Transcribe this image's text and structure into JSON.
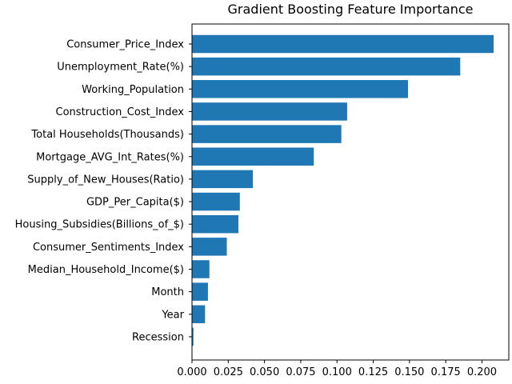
{
  "chart_data": {
    "type": "bar",
    "orientation": "horizontal",
    "title": "Gradient Boosting Feature Importance",
    "xlabel": "",
    "ylabel": "",
    "categories": [
      "Consumer_Price_Index",
      "Unemployment_Rate(%)",
      "Working_Population",
      "Construction_Cost_Index",
      "Total Households(Thousands)",
      "Mortgage_AVG_Int_Rates(%)",
      "Supply_of_New_Houses(Ratio)",
      "GDP_Per_Capita($)",
      "Housing_Subsidies(Billions_of_$)",
      "Consumer_Sentiments_Index",
      "Median_Household_Income($)",
      "Month",
      "Year",
      "Recession"
    ],
    "values": [
      0.208,
      0.185,
      0.149,
      0.107,
      0.103,
      0.084,
      0.042,
      0.033,
      0.032,
      0.024,
      0.012,
      0.011,
      0.009,
      0.001
    ],
    "xlim": [
      0,
      0.2185
    ],
    "xticks": [
      "0.000",
      "0.025",
      "0.050",
      "0.075",
      "0.100",
      "0.125",
      "0.150",
      "0.175",
      "0.200"
    ],
    "grid": false,
    "bar_color": "#1f77b4"
  }
}
